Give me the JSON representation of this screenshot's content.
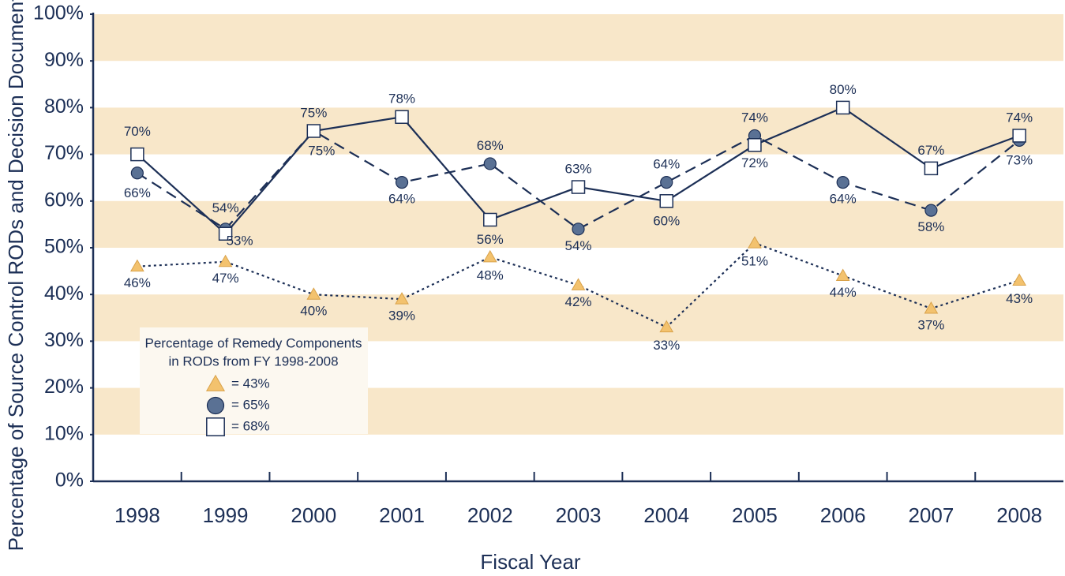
{
  "chart_data": {
    "type": "line",
    "y_label": "Percentage of Source Control RODs and Decision Documents",
    "x_label": "Fiscal Year",
    "categories": [
      "1998",
      "1999",
      "2000",
      "2001",
      "2002",
      "2003",
      "2004",
      "2005",
      "2006",
      "2007",
      "2008"
    ],
    "series": [
      {
        "marker": "square",
        "dash": "solid",
        "color": "#1c2f56",
        "values": [
          70,
          53,
          75,
          78,
          56,
          63,
          60,
          72,
          80,
          67,
          74
        ],
        "value_labels": [
          "70%",
          "53%",
          "75%",
          "78%",
          "56%",
          "63%",
          "60%",
          "72%",
          "80%",
          "67%",
          "74%"
        ]
      },
      {
        "marker": "circle",
        "dash": "dashed",
        "color": "#5a7194",
        "values": [
          66,
          54,
          75,
          64,
          68,
          54,
          64,
          74,
          64,
          58,
          73
        ],
        "value_labels": [
          "66%",
          "54%",
          "75%",
          "64%",
          "68%",
          "54%",
          "64%",
          "74%",
          "64%",
          "58%",
          "73%"
        ]
      },
      {
        "marker": "triangle",
        "dash": "dotted",
        "color": "#f3c26e",
        "values": [
          46,
          47,
          40,
          39,
          48,
          42,
          33,
          51,
          44,
          37,
          43
        ],
        "value_labels": [
          "46%",
          "47%",
          "40%",
          "39%",
          "48%",
          "42%",
          "33%",
          "51%",
          "44%",
          "37%",
          "43%"
        ]
      }
    ],
    "ylim": [
      0,
      100
    ],
    "yticks": [
      {
        "value": 0,
        "label": "0%"
      },
      {
        "value": 10,
        "label": "10%"
      },
      {
        "value": 20,
        "label": "20%"
      },
      {
        "value": 30,
        "label": "30%"
      },
      {
        "value": 40,
        "label": "40%"
      },
      {
        "value": 50,
        "label": "50%"
      },
      {
        "value": 60,
        "label": "60%"
      },
      {
        "value": 70,
        "label": "70%"
      },
      {
        "value": 80,
        "label": "80%"
      },
      {
        "value": 90,
        "label": "90%"
      },
      {
        "value": 100,
        "label": "100%"
      }
    ],
    "bands": true,
    "legend": {
      "title": [
        "Percentage of Remedy Components",
        "in RODs from FY 1998-2008"
      ],
      "items": [
        "= 43%",
        "= 65%",
        "= 68%"
      ]
    }
  }
}
